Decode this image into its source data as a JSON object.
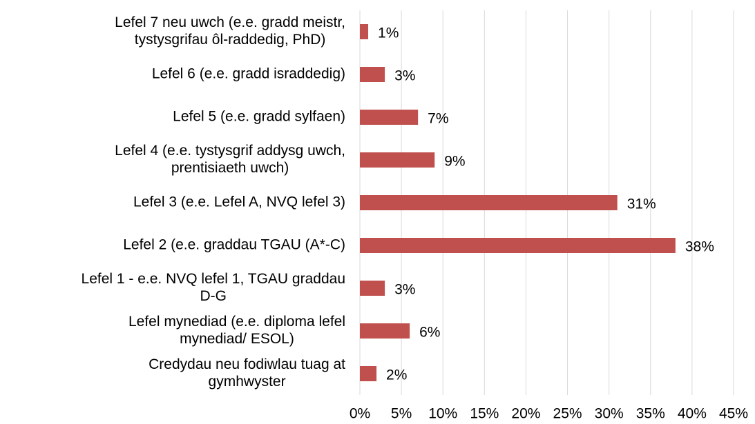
{
  "chart_data": {
    "type": "barh",
    "categories": [
      [
        "Lefel 7 neu uwch (e.e. gradd meistr,",
        "tystysgrifau ôl-raddedig, PhD)"
      ],
      [
        "Lefel 6 (e.e. gradd israddedig)"
      ],
      [
        "Lefel 5 (e.e. gradd sylfaen)"
      ],
      [
        "Lefel 4 (e.e. tystysgrif addysg uwch,",
        "prentisiaeth uwch)"
      ],
      [
        "Lefel 3 (e.e. Lefel A, NVQ lefel 3)"
      ],
      [
        "Lefel 2 (e.e. graddau TGAU (A*-C)"
      ],
      [
        "Lefel 1 - e.e. NVQ lefel 1, TGAU graddau",
        "D-G"
      ],
      [
        "Lefel mynediad (e.e. diploma lefel",
        "mynediad/ ESOL)"
      ],
      [
        "Credydau neu fodiwlau tuag at",
        "gymhwyster"
      ]
    ],
    "values": [
      1,
      3,
      7,
      9,
      31,
      38,
      3,
      6,
      2
    ],
    "value_labels": [
      "1%",
      "3%",
      "7%",
      "9%",
      "31%",
      "38%",
      "3%",
      "6%",
      "2%"
    ],
    "color": "#c0504d",
    "xlim": [
      0,
      45
    ],
    "xticks": [
      {
        "value": 0,
        "label": "0%"
      },
      {
        "value": 5,
        "label": "5%"
      },
      {
        "value": 10,
        "label": "10%"
      },
      {
        "value": 15,
        "label": "15%"
      },
      {
        "value": 20,
        "label": "20%"
      },
      {
        "value": 25,
        "label": "25%"
      },
      {
        "value": 30,
        "label": "30%"
      },
      {
        "value": 35,
        "label": "35%"
      },
      {
        "value": 40,
        "label": "40%"
      },
      {
        "value": 45,
        "label": "45%"
      }
    ],
    "grid": true
  }
}
